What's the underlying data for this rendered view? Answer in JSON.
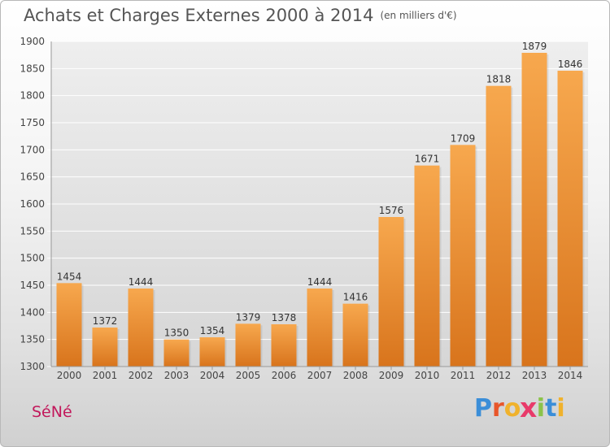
{
  "chart_data": {
    "type": "bar",
    "title": "Achats et Charges Externes 2000 à 2014",
    "subtitle": "(en milliers d'€)",
    "categories": [
      "2000",
      "2001",
      "2002",
      "2003",
      "2004",
      "2005",
      "2006",
      "2007",
      "2008",
      "2009",
      "2010",
      "2011",
      "2012",
      "2013",
      "2014"
    ],
    "values": [
      1454,
      1372,
      1444,
      1350,
      1354,
      1379,
      1378,
      1444,
      1416,
      1576,
      1671,
      1709,
      1818,
      1879,
      1846
    ],
    "ylim": [
      1300,
      1900
    ],
    "yticks": [
      1300,
      1350,
      1400,
      1450,
      1500,
      1550,
      1600,
      1650,
      1700,
      1750,
      1800,
      1850,
      1900
    ],
    "grid": true,
    "bar_color": "#f0a050",
    "legend": "none"
  },
  "footer": {
    "commune": "SéNé",
    "logo_letters": [
      "P",
      "r",
      "o",
      "x",
      "i",
      "t",
      "i"
    ],
    "logo_colors": [
      "#3b8ed8",
      "#e8562a",
      "#f0b22c",
      "#e83a6a",
      "#8bc34a",
      "#3b8ed8",
      "#f0b22c"
    ]
  }
}
